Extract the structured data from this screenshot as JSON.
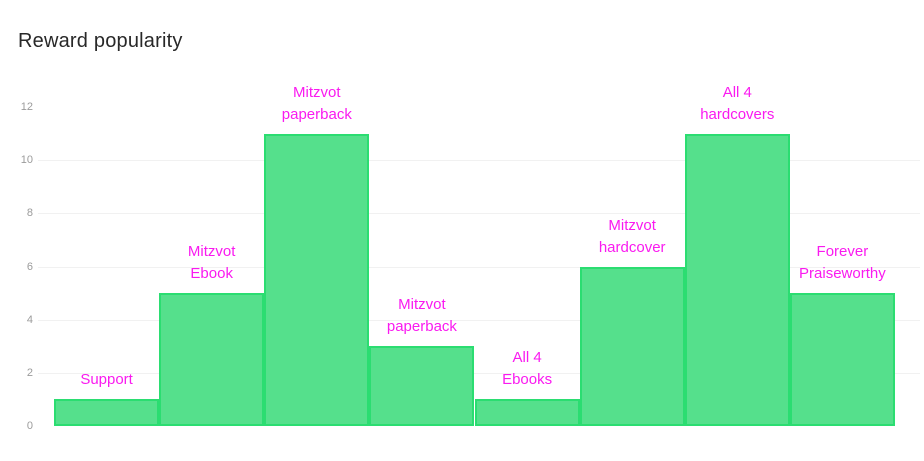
{
  "header": {
    "title": "Reward popularity"
  },
  "colors": {
    "background": "#ffffff",
    "title_text": "#282828",
    "bar_fill": "#55e08c",
    "bar_border": "#2bdd71",
    "data_label": "#fa1af0",
    "tick_text": "#9b9b9b",
    "gridline": "#f1f1f1"
  },
  "chart_data": {
    "type": "bar",
    "title": "Reward popularity",
    "categories": [
      "Support",
      "Mitzvot Ebook",
      "Mitzvot paperback",
      "Mitzvot paperback",
      "All 4 Ebooks",
      "Mitzvot hardcover",
      "All 4 hardcovers",
      "Forever Praiseworthy"
    ],
    "values": [
      1,
      5,
      11,
      3,
      1,
      6,
      11,
      5
    ],
    "label_lines": [
      [
        "Support"
      ],
      [
        "Mitzvot",
        "Ebook"
      ],
      [
        "Mitzvot",
        "paperback"
      ],
      [
        "Mitzvot",
        "paperback"
      ],
      [
        "All 4",
        "Ebooks"
      ],
      [
        "Mitzvot",
        "hardcover"
      ],
      [
        "All 4",
        "hardcovers"
      ],
      [
        "Forever",
        "Praiseworthy"
      ]
    ],
    "xlabel": "",
    "ylabel": "",
    "ylim": [
      0,
      12
    ],
    "yticks": [
      0,
      2,
      4,
      6,
      8,
      10,
      12
    ],
    "gridline_values": [
      2,
      4,
      6,
      8,
      10
    ],
    "grid": true,
    "legend": "none",
    "bar_gap": 0,
    "x_tick_labels": "none",
    "data_labels_position": "above-bars"
  }
}
